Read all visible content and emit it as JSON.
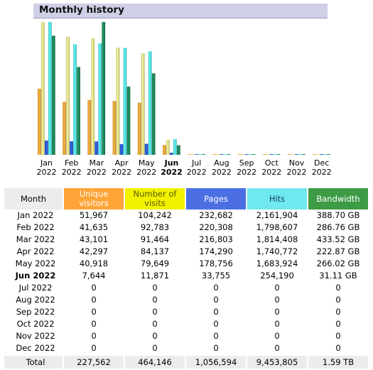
{
  "title": "Monthly history",
  "colors": {
    "visitors": "#f7a93b",
    "visits": "#ebe58a",
    "pages": "#2b5bd6",
    "hits": "#55e5ea",
    "bandwidth": "#1a8a5a"
  },
  "chart_data": {
    "type": "bar",
    "categories": [
      "Jan 2022",
      "Feb 2022",
      "Mar 2022",
      "Apr 2022",
      "May 2022",
      "Jun 2022",
      "Jul 2022",
      "Aug 2022",
      "Sep 2022",
      "Oct 2022",
      "Nov 2022",
      "Dec 2022"
    ],
    "series": [
      {
        "name": "Unique visitors",
        "values": [
          51967,
          41635,
          43101,
          42297,
          40918,
          7644,
          0,
          0,
          0,
          0,
          0,
          0
        ]
      },
      {
        "name": "Number of visits",
        "values": [
          104242,
          92783,
          91464,
          84137,
          79649,
          11871,
          0,
          0,
          0,
          0,
          0,
          0
        ]
      },
      {
        "name": "Pages",
        "values": [
          232682,
          220308,
          216803,
          174290,
          178756,
          33755,
          0,
          0,
          0,
          0,
          0,
          0
        ]
      },
      {
        "name": "Hits",
        "values": [
          2161904,
          1798607,
          1814408,
          1740772,
          1683924,
          254190,
          0,
          0,
          0,
          0,
          0,
          0
        ]
      },
      {
        "name": "Bandwidth",
        "values": [
          388.7,
          286.76,
          433.52,
          222.87,
          266.02,
          31.11,
          0,
          0,
          0,
          0,
          0,
          0
        ]
      }
    ],
    "current_month": "Jun 2022"
  },
  "months": [
    {
      "m": "Jan",
      "y": "2022"
    },
    {
      "m": "Feb",
      "y": "2022"
    },
    {
      "m": "Mar",
      "y": "2022"
    },
    {
      "m": "Apr",
      "y": "2022"
    },
    {
      "m": "May",
      "y": "2022"
    },
    {
      "m": "Jun",
      "y": "2022"
    },
    {
      "m": "Jul",
      "y": "2022"
    },
    {
      "m": "Aug",
      "y": "2022"
    },
    {
      "m": "Sep",
      "y": "2022"
    },
    {
      "m": "Oct",
      "y": "2022"
    },
    {
      "m": "Nov",
      "y": "2022"
    },
    {
      "m": "Dec",
      "y": "2022"
    }
  ],
  "table": {
    "headers": {
      "month": "Month",
      "visitors": "Unique visitors",
      "visits": "Number of visits",
      "pages": "Pages",
      "hits": "Hits",
      "bandwidth": "Bandwidth"
    },
    "rows": [
      {
        "month": "Jan 2022",
        "visitors": "51,967",
        "visits": "104,242",
        "pages": "232,682",
        "hits": "2,161,904",
        "bandwidth": "388.70 GB"
      },
      {
        "month": "Feb 2022",
        "visitors": "41,635",
        "visits": "92,783",
        "pages": "220,308",
        "hits": "1,798,607",
        "bandwidth": "286.76 GB"
      },
      {
        "month": "Mar 2022",
        "visitors": "43,101",
        "visits": "91,464",
        "pages": "216,803",
        "hits": "1,814,408",
        "bandwidth": "433.52 GB"
      },
      {
        "month": "Apr 2022",
        "visitors": "42,297",
        "visits": "84,137",
        "pages": "174,290",
        "hits": "1,740,772",
        "bandwidth": "222.87 GB"
      },
      {
        "month": "May 2022",
        "visitors": "40,918",
        "visits": "79,649",
        "pages": "178,756",
        "hits": "1,683,924",
        "bandwidth": "266.02 GB"
      },
      {
        "month": "Jun 2022",
        "visitors": "7,644",
        "visits": "11,871",
        "pages": "33,755",
        "hits": "254,190",
        "bandwidth": "31.11 GB"
      },
      {
        "month": "Jul 2022",
        "visitors": "0",
        "visits": "0",
        "pages": "0",
        "hits": "0",
        "bandwidth": "0"
      },
      {
        "month": "Aug 2022",
        "visitors": "0",
        "visits": "0",
        "pages": "0",
        "hits": "0",
        "bandwidth": "0"
      },
      {
        "month": "Sep 2022",
        "visitors": "0",
        "visits": "0",
        "pages": "0",
        "hits": "0",
        "bandwidth": "0"
      },
      {
        "month": "Oct 2022",
        "visitors": "0",
        "visits": "0",
        "pages": "0",
        "hits": "0",
        "bandwidth": "0"
      },
      {
        "month": "Nov 2022",
        "visitors": "0",
        "visits": "0",
        "pages": "0",
        "hits": "0",
        "bandwidth": "0"
      },
      {
        "month": "Dec 2022",
        "visitors": "0",
        "visits": "0",
        "pages": "0",
        "hits": "0",
        "bandwidth": "0"
      }
    ],
    "total": {
      "month": "Total",
      "visitors": "227,562",
      "visits": "464,146",
      "pages": "1,056,594",
      "hits": "9,453,805",
      "bandwidth": "1.59 TB"
    }
  }
}
